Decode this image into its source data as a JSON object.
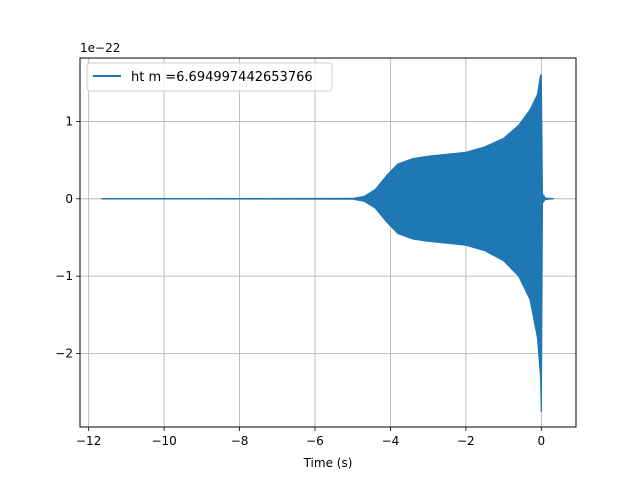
{
  "chart_data": {
    "type": "line",
    "title": "",
    "xlabel": "Time (s)",
    "ylabel": "",
    "y_offset_label": "1e−22",
    "xlim": [
      -12.23,
      0.92
    ],
    "ylim": [
      -2.95,
      1.82
    ],
    "x_ticks": [
      -12,
      -10,
      -8,
      -6,
      -4,
      -2,
      0
    ],
    "x_tick_labels": [
      "−12",
      "−10",
      "−8",
      "−6",
      "−4",
      "−2",
      "0"
    ],
    "y_ticks": [
      -2,
      -1,
      0,
      1
    ],
    "y_tick_labels": [
      "−2",
      "−1",
      "0",
      "1"
    ],
    "grid": true,
    "legend_position": "upper-left",
    "series": [
      {
        "name": "ht m =6.694997442653766",
        "color": "#1f77b4",
        "x_range": [
          -11.65,
          0.32
        ],
        "envelope_upper": [
          [
            -11.65,
            0.0
          ],
          [
            -5.0,
            0.005
          ],
          [
            -4.7,
            0.03
          ],
          [
            -4.4,
            0.12
          ],
          [
            -4.1,
            0.3
          ],
          [
            -3.8,
            0.45
          ],
          [
            -3.4,
            0.52
          ],
          [
            -3.0,
            0.55
          ],
          [
            -2.0,
            0.6
          ],
          [
            -1.5,
            0.67
          ],
          [
            -1.0,
            0.78
          ],
          [
            -0.6,
            0.95
          ],
          [
            -0.3,
            1.15
          ],
          [
            -0.1,
            1.35
          ],
          [
            -0.02,
            1.6
          ],
          [
            0.0,
            1.6
          ],
          [
            0.03,
            0.02
          ],
          [
            0.06,
            0.05
          ],
          [
            0.1,
            0.01
          ],
          [
            0.32,
            0.0
          ]
        ],
        "envelope_lower": [
          [
            -11.65,
            0.0
          ],
          [
            -5.0,
            -0.005
          ],
          [
            -4.7,
            -0.03
          ],
          [
            -4.4,
            -0.12
          ],
          [
            -4.1,
            -0.3
          ],
          [
            -3.8,
            -0.45
          ],
          [
            -3.4,
            -0.52
          ],
          [
            -3.0,
            -0.55
          ],
          [
            -2.0,
            -0.6
          ],
          [
            -1.5,
            -0.67
          ],
          [
            -1.0,
            -0.8
          ],
          [
            -0.6,
            -1.0
          ],
          [
            -0.3,
            -1.3
          ],
          [
            -0.1,
            -1.8
          ],
          [
            -0.02,
            -2.3
          ],
          [
            0.0,
            -2.75
          ],
          [
            0.03,
            -0.05
          ],
          [
            0.06,
            -0.04
          ],
          [
            0.1,
            -0.01
          ],
          [
            0.32,
            0.0
          ]
        ]
      }
    ]
  }
}
